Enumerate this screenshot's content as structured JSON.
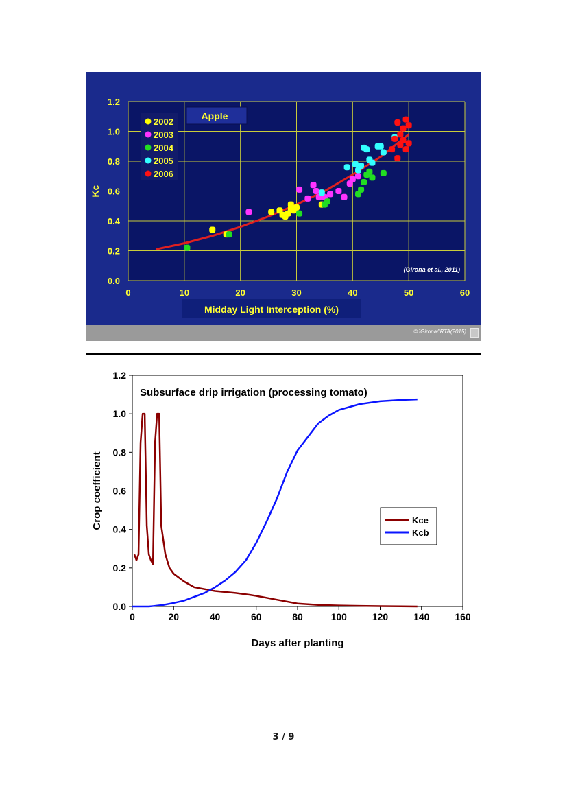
{
  "chart_data": [
    {
      "type": "scatter",
      "title": "Apple",
      "xlabel": "Midday Light Interception  (%)",
      "ylabel": "Kc",
      "xlim": [
        0,
        60
      ],
      "ylim": [
        0.0,
        1.2
      ],
      "x_ticks": [
        "0",
        "10",
        "20",
        "30",
        "40",
        "50",
        "60"
      ],
      "y_ticks": [
        "0.0",
        "0.2",
        "0.4",
        "0.6",
        "0.8",
        "1.0",
        "1.2"
      ],
      "grid": true,
      "legend_position": "top-left",
      "annotation": "(Girona et al., 2011)",
      "credit": "©JGirona/IRTA(2015)",
      "fit_curve": {
        "color": "#e02020",
        "x": [
          5,
          10,
          15,
          20,
          25,
          30,
          35,
          40,
          45,
          50
        ],
        "y": [
          0.21,
          0.25,
          0.3,
          0.36,
          0.43,
          0.51,
          0.6,
          0.71,
          0.83,
          0.98
        ]
      },
      "series": [
        {
          "name": "2002",
          "color": "#ffff00",
          "x": [
            15,
            17.5,
            25.5,
            27,
            27.5,
            28,
            28.5,
            29,
            29,
            29.5,
            30,
            34.5
          ],
          "y": [
            0.34,
            0.31,
            0.46,
            0.47,
            0.44,
            0.43,
            0.45,
            0.51,
            0.48,
            0.47,
            0.49,
            0.51
          ]
        },
        {
          "name": "2003",
          "color": "#ff33ff",
          "x": [
            21.5,
            30.5,
            32,
            33,
            33.5,
            34,
            35,
            36,
            37.5,
            38.5,
            39.5,
            40,
            41
          ],
          "y": [
            0.46,
            0.61,
            0.55,
            0.64,
            0.6,
            0.56,
            0.56,
            0.58,
            0.6,
            0.56,
            0.65,
            0.68,
            0.7
          ]
        },
        {
          "name": "2004",
          "color": "#22dd22",
          "x": [
            10.5,
            18,
            30.5,
            35,
            35.5,
            41,
            41.5,
            42,
            42.5,
            43,
            43.5,
            45.5
          ],
          "y": [
            0.22,
            0.31,
            0.45,
            0.51,
            0.53,
            0.58,
            0.61,
            0.66,
            0.71,
            0.73,
            0.69,
            0.72
          ]
        },
        {
          "name": "2005",
          "color": "#33ffff",
          "x": [
            34.5,
            39,
            40.5,
            41,
            41.5,
            42,
            42.5,
            43,
            43.5,
            44.5,
            45,
            45.5,
            47.5
          ],
          "y": [
            0.59,
            0.76,
            0.78,
            0.74,
            0.77,
            0.89,
            0.88,
            0.81,
            0.79,
            0.9,
            0.9,
            0.86,
            0.96
          ]
        },
        {
          "name": "2006",
          "color": "#ff1111",
          "x": [
            47,
            47.5,
            48,
            48,
            48.5,
            48.5,
            49,
            49,
            49.5,
            49.5,
            50,
            50
          ],
          "y": [
            0.88,
            0.95,
            0.82,
            1.06,
            0.98,
            0.91,
            1.02,
            0.94,
            1.08,
            0.88,
            1.04,
            0.92
          ]
        }
      ]
    },
    {
      "type": "line",
      "title": "Subsurface drip irrigation (processing tomato)",
      "xlabel": "Days after planting",
      "ylabel": "Crop coefficient",
      "xlim": [
        0,
        160
      ],
      "ylim": [
        0.0,
        1.2
      ],
      "x_ticks": [
        "0",
        "20",
        "40",
        "60",
        "80",
        "100",
        "120",
        "140",
        "160"
      ],
      "y_ticks": [
        "0.0",
        "0.2",
        "0.4",
        "0.6",
        "0.8",
        "1.0",
        "1.2"
      ],
      "grid": false,
      "legend_position": "right",
      "series": [
        {
          "name": "Kce",
          "color": "#8b0000",
          "x": [
            1,
            2,
            3,
            4,
            5,
            6,
            7,
            8,
            9,
            10,
            11,
            12,
            13,
            14,
            16,
            18,
            20,
            25,
            30,
            40,
            50,
            57,
            60,
            70,
            80,
            90,
            100,
            110,
            120,
            130,
            138
          ],
          "y": [
            0.27,
            0.24,
            0.27,
            0.85,
            1.0,
            1.0,
            0.42,
            0.27,
            0.24,
            0.22,
            0.85,
            1.0,
            1.0,
            0.42,
            0.27,
            0.2,
            0.17,
            0.13,
            0.1,
            0.08,
            0.07,
            0.06,
            0.055,
            0.035,
            0.015,
            0.008,
            0.005,
            0.003,
            0.002,
            0.001,
            0.0
          ]
        },
        {
          "name": "Kcb",
          "color": "#0a14ff",
          "x": [
            0,
            8,
            10,
            15,
            20,
            25,
            30,
            35,
            40,
            45,
            50,
            55,
            60,
            65,
            70,
            75,
            80,
            85,
            90,
            95,
            100,
            110,
            120,
            130,
            138
          ],
          "y": [
            0.0,
            0.0,
            0.002,
            0.008,
            0.018,
            0.03,
            0.05,
            0.07,
            0.1,
            0.135,
            0.18,
            0.24,
            0.33,
            0.44,
            0.56,
            0.7,
            0.81,
            0.88,
            0.95,
            0.99,
            1.02,
            1.05,
            1.065,
            1.072,
            1.075
          ]
        }
      ]
    }
  ],
  "page": {
    "number": "3 / 9"
  }
}
